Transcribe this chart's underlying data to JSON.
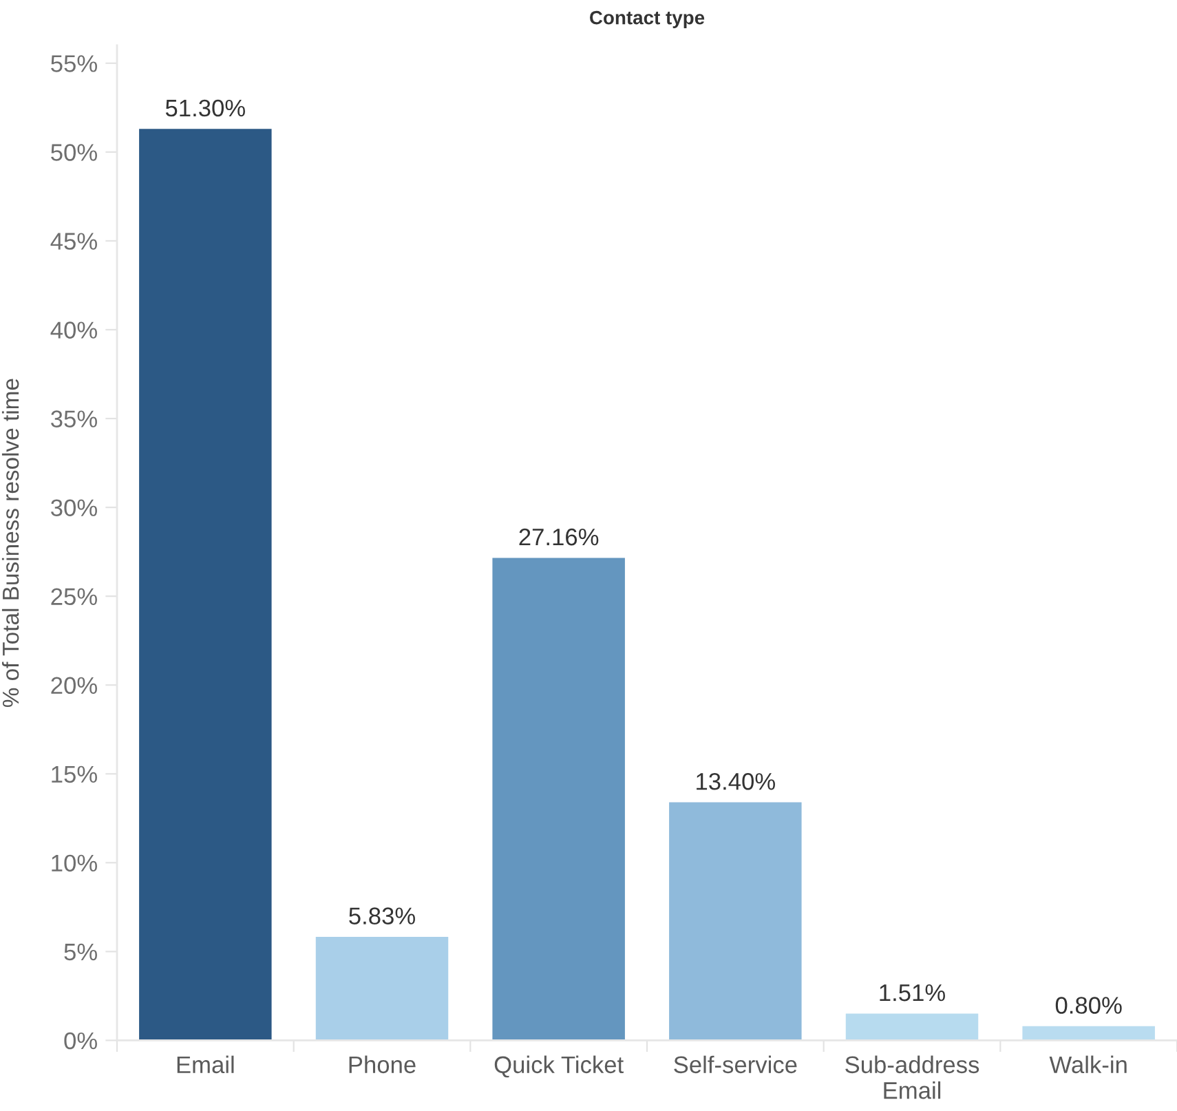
{
  "chart_data": {
    "type": "bar",
    "title": "Contact type",
    "ylabel": "% of Total Business resolve time",
    "categories": [
      "Email",
      "Phone",
      "Quick Ticket",
      "Self-service",
      "Sub-address Email",
      "Walk-in"
    ],
    "values": [
      51.3,
      5.83,
      27.16,
      13.4,
      1.51,
      0.8
    ],
    "colors": [
      "#2c5985",
      "#a9cfe9",
      "#6496bf",
      "#8fbadb",
      "#b7dbef",
      "#b9dcf0"
    ],
    "value_labels": [
      "51.30%",
      "5.83%",
      "27.16%",
      "13.40%",
      "1.51%",
      "0.80%"
    ],
    "ylim": [
      0,
      56
    ],
    "yticks": [
      {
        "value": 0,
        "label": "0%"
      },
      {
        "value": 5,
        "label": "5%"
      },
      {
        "value": 10,
        "label": "10%"
      },
      {
        "value": 15,
        "label": "15%"
      },
      {
        "value": 20,
        "label": "20%"
      },
      {
        "value": 25,
        "label": "25%"
      },
      {
        "value": 30,
        "label": "30%"
      },
      {
        "value": 35,
        "label": "35%"
      },
      {
        "value": 40,
        "label": "40%"
      },
      {
        "value": 45,
        "label": "45%"
      },
      {
        "value": 50,
        "label": "50%"
      },
      {
        "value": 55,
        "label": "55%"
      }
    ],
    "grid": false,
    "legend": false
  }
}
